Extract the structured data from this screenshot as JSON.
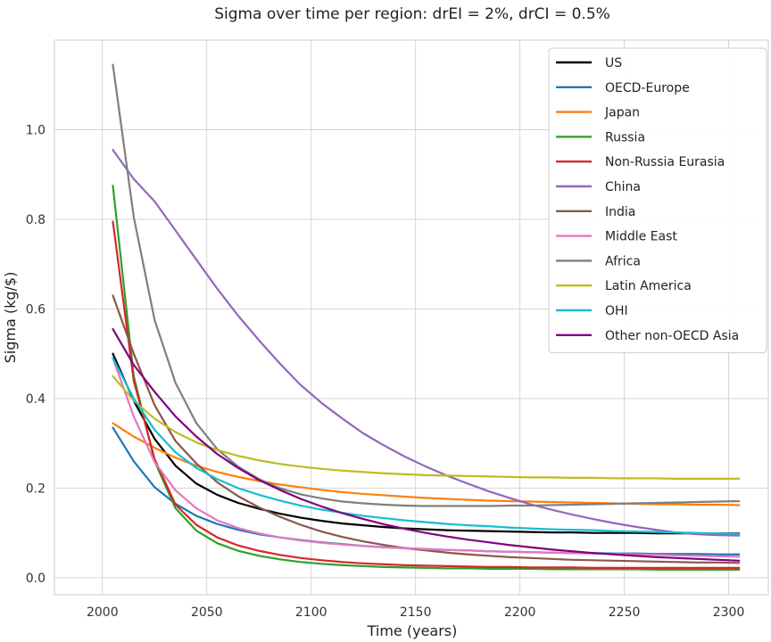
{
  "chart_data": {
    "type": "line",
    "title": "Sigma over time per region: drEI = 2%, drCI = 0.5%",
    "xlabel": "Time (years)",
    "ylabel": "Sigma (kg/$)",
    "xlim": [
      1977,
      2319
    ],
    "ylim": [
      -0.038,
      1.2
    ],
    "xticks": [
      2000,
      2050,
      2100,
      2150,
      2200,
      2250,
      2300
    ],
    "yticks": [
      0.0,
      0.2,
      0.4,
      0.6,
      0.8,
      1.0
    ],
    "xtick_labels": [
      "2000",
      "2050",
      "2100",
      "2150",
      "2200",
      "2250",
      "2300"
    ],
    "ytick_labels": [
      "0.0",
      "0.2",
      "0.4",
      "0.6",
      "0.8",
      "1.0"
    ],
    "grid": true,
    "legend_position": "top-right",
    "x": [
      2005,
      2015,
      2025,
      2035,
      2045,
      2055,
      2065,
      2075,
      2085,
      2095,
      2105,
      2115,
      2125,
      2135,
      2145,
      2155,
      2165,
      2175,
      2185,
      2195,
      2205,
      2215,
      2225,
      2235,
      2245,
      2255,
      2265,
      2275,
      2285,
      2295,
      2305
    ],
    "series": [
      {
        "name": "US",
        "color": "#000000",
        "values": [
          0.5,
          0.395,
          0.31,
          0.25,
          0.21,
          0.185,
          0.167,
          0.154,
          0.143,
          0.134,
          0.127,
          0.121,
          0.117,
          0.113,
          0.11,
          0.108,
          0.106,
          0.105,
          0.104,
          0.103,
          0.102,
          0.101,
          0.101,
          0.1,
          0.1,
          0.1,
          0.099,
          0.099,
          0.099,
          0.099,
          0.099
        ]
      },
      {
        "name": "OECD-Europe",
        "color": "#1f77b4",
        "values": [
          0.335,
          0.26,
          0.202,
          0.165,
          0.138,
          0.12,
          0.107,
          0.097,
          0.09,
          0.084,
          0.079,
          0.075,
          0.071,
          0.068,
          0.066,
          0.064,
          0.062,
          0.061,
          0.059,
          0.058,
          0.057,
          0.056,
          0.055,
          0.055,
          0.054,
          0.054,
          0.053,
          0.053,
          0.053,
          0.052,
          0.052
        ]
      },
      {
        "name": "Japan",
        "color": "#ff7f0e",
        "values": [
          0.345,
          0.315,
          0.29,
          0.268,
          0.25,
          0.236,
          0.225,
          0.216,
          0.208,
          0.202,
          0.196,
          0.191,
          0.187,
          0.184,
          0.181,
          0.178,
          0.176,
          0.174,
          0.172,
          0.171,
          0.17,
          0.169,
          0.168,
          0.167,
          0.166,
          0.165,
          0.164,
          0.164,
          0.163,
          0.163,
          0.162
        ]
      },
      {
        "name": "Russia",
        "color": "#2ca02c",
        "values": [
          0.875,
          0.45,
          0.26,
          0.155,
          0.105,
          0.077,
          0.06,
          0.049,
          0.041,
          0.035,
          0.031,
          0.028,
          0.026,
          0.024,
          0.023,
          0.022,
          0.021,
          0.021,
          0.02,
          0.02,
          0.02,
          0.019,
          0.019,
          0.019,
          0.019,
          0.019,
          0.018,
          0.018,
          0.018,
          0.018,
          0.018
        ]
      },
      {
        "name": "Non-Russia Eurasia",
        "color": "#d62728",
        "values": [
          0.795,
          0.44,
          0.265,
          0.163,
          0.118,
          0.09,
          0.072,
          0.06,
          0.051,
          0.044,
          0.039,
          0.035,
          0.032,
          0.03,
          0.028,
          0.027,
          0.026,
          0.025,
          0.024,
          0.024,
          0.023,
          0.023,
          0.023,
          0.022,
          0.022,
          0.022,
          0.022,
          0.022,
          0.022,
          0.022,
          0.022
        ]
      },
      {
        "name": "China",
        "color": "#9467bd",
        "values": [
          0.955,
          0.89,
          0.84,
          0.775,
          0.71,
          0.645,
          0.585,
          0.53,
          0.478,
          0.43,
          0.39,
          0.355,
          0.322,
          0.295,
          0.27,
          0.248,
          0.228,
          0.21,
          0.193,
          0.178,
          0.164,
          0.152,
          0.141,
          0.131,
          0.122,
          0.114,
          0.107,
          0.101,
          0.097,
          0.095,
          0.094
        ]
      },
      {
        "name": "India",
        "color": "#8c564b",
        "values": [
          0.63,
          0.5,
          0.385,
          0.305,
          0.255,
          0.213,
          0.182,
          0.157,
          0.136,
          0.118,
          0.103,
          0.091,
          0.081,
          0.073,
          0.066,
          0.061,
          0.056,
          0.052,
          0.049,
          0.046,
          0.044,
          0.042,
          0.04,
          0.039,
          0.038,
          0.037,
          0.036,
          0.035,
          0.034,
          0.034,
          0.033
        ]
      },
      {
        "name": "Middle East",
        "color": "#e377c2",
        "values": [
          0.49,
          0.36,
          0.258,
          0.195,
          0.155,
          0.128,
          0.111,
          0.099,
          0.09,
          0.083,
          0.078,
          0.074,
          0.071,
          0.068,
          0.066,
          0.064,
          0.062,
          0.061,
          0.059,
          0.058,
          0.057,
          0.056,
          0.055,
          0.054,
          0.053,
          0.052,
          0.051,
          0.05,
          0.049,
          0.048,
          0.047
        ]
      },
      {
        "name": "Africa",
        "color": "#7f7f7f",
        "values": [
          1.145,
          0.805,
          0.575,
          0.435,
          0.345,
          0.287,
          0.248,
          0.22,
          0.2,
          0.186,
          0.177,
          0.17,
          0.166,
          0.163,
          0.161,
          0.16,
          0.16,
          0.16,
          0.16,
          0.161,
          0.161,
          0.162,
          0.163,
          0.164,
          0.165,
          0.166,
          0.167,
          0.168,
          0.169,
          0.17,
          0.171
        ]
      },
      {
        "name": "Latin America",
        "color": "#bcbd22",
        "values": [
          0.45,
          0.395,
          0.355,
          0.325,
          0.302,
          0.285,
          0.272,
          0.262,
          0.254,
          0.248,
          0.243,
          0.239,
          0.236,
          0.233,
          0.231,
          0.229,
          0.228,
          0.227,
          0.226,
          0.225,
          0.224,
          0.224,
          0.223,
          0.223,
          0.222,
          0.222,
          0.222,
          0.221,
          0.221,
          0.221,
          0.221
        ]
      },
      {
        "name": "OHI",
        "color": "#17becf",
        "values": [
          0.49,
          0.4,
          0.33,
          0.28,
          0.245,
          0.22,
          0.2,
          0.185,
          0.172,
          0.161,
          0.152,
          0.145,
          0.138,
          0.133,
          0.128,
          0.124,
          0.12,
          0.117,
          0.115,
          0.112,
          0.11,
          0.108,
          0.107,
          0.106,
          0.104,
          0.103,
          0.102,
          0.101,
          0.1,
          0.099,
          0.098
        ]
      },
      {
        "name": "Other non-OECD Asia",
        "color": "#800080",
        "values": [
          0.555,
          0.475,
          0.415,
          0.36,
          0.315,
          0.276,
          0.245,
          0.218,
          0.196,
          0.176,
          0.159,
          0.144,
          0.131,
          0.119,
          0.109,
          0.1,
          0.092,
          0.085,
          0.079,
          0.073,
          0.068,
          0.063,
          0.059,
          0.055,
          0.052,
          0.049,
          0.046,
          0.044,
          0.042,
          0.04,
          0.038
        ]
      }
    ]
  }
}
